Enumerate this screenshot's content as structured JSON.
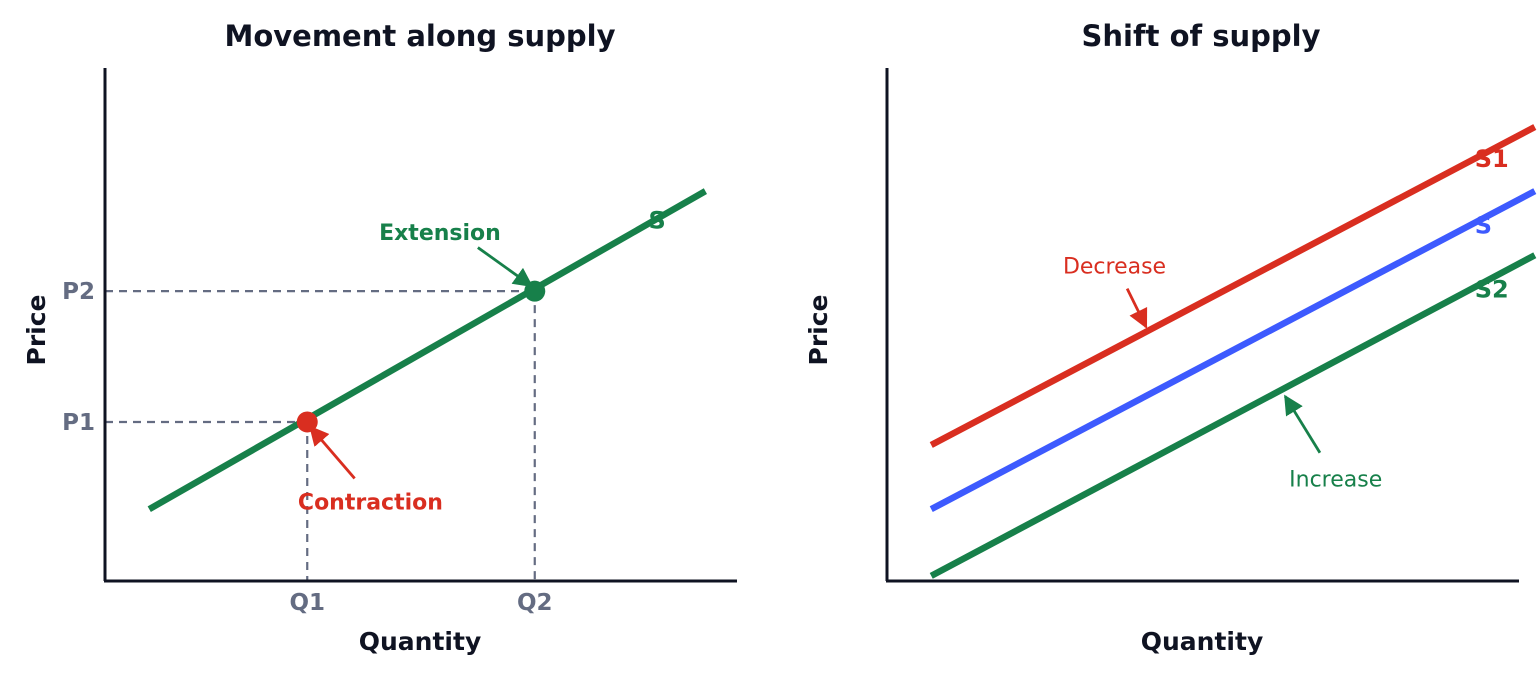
{
  "colors": {
    "supply": "#17804a",
    "s1": "#d92e20",
    "s": "#3d5afe",
    "s2": "#17804a",
    "contraction": "#d92e20",
    "extension": "#17804a",
    "guides": "#646c82",
    "axes": "#0f1322"
  },
  "chart_data": [
    {
      "type": "line",
      "title": "Movement along supply",
      "xlabel": "Quantity",
      "ylabel": "Price",
      "xlim": [
        0,
        10
      ],
      "ylim": [
        0,
        10
      ],
      "x_ticks": [
        {
          "value": 3.2,
          "label": "Q1"
        },
        {
          "value": 6.8,
          "label": "Q2"
        }
      ],
      "y_ticks": [
        {
          "value": 3.1,
          "label": "P1"
        },
        {
          "value": 5.65,
          "label": "P2"
        }
      ],
      "series": [
        {
          "name": "S",
          "color_key": "supply",
          "x": [
            0.7,
            9.5
          ],
          "y": [
            1.4,
            7.6
          ],
          "label_at": [
            8.6,
            7.05
          ]
        }
      ],
      "points": [
        {
          "x": 3.2,
          "y": 3.1,
          "color_key": "contraction"
        },
        {
          "x": 6.8,
          "y": 5.65,
          "color_key": "extension"
        }
      ],
      "annotations": [
        {
          "text": "Contraction",
          "color_key": "contraction",
          "text_at": [
            4.2,
            1.55
          ],
          "arrow_from": [
            3.95,
            2.0
          ],
          "arrow_to": [
            3.25,
            3.0
          ]
        },
        {
          "text": "Extension",
          "color_key": "extension",
          "text_at": [
            5.3,
            6.8
          ],
          "arrow_from": [
            5.9,
            6.5
          ],
          "arrow_to": [
            6.75,
            5.75
          ]
        }
      ]
    },
    {
      "type": "line",
      "title": "Shift of supply",
      "xlabel": "Quantity",
      "ylabel": "Price",
      "xlim": [
        0,
        10
      ],
      "ylim": [
        0,
        10
      ],
      "series": [
        {
          "name": "S1",
          "color_key": "s1",
          "x": [
            0.7,
            10.25
          ],
          "y": [
            2.65,
            8.85
          ],
          "label_at": [
            9.3,
            8.25
          ]
        },
        {
          "name": "S",
          "color_key": "s",
          "x": [
            0.7,
            10.25
          ],
          "y": [
            1.4,
            7.6
          ],
          "label_at": [
            9.3,
            6.95
          ]
        },
        {
          "name": "S2",
          "color_key": "s2",
          "x": [
            0.7,
            10.25
          ],
          "y": [
            0.1,
            6.35
          ],
          "label_at": [
            9.3,
            5.7
          ]
        }
      ],
      "annotations": [
        {
          "text": "Decrease",
          "color_key": "s1",
          "text_at": [
            3.6,
            6.15
          ],
          "arrow_from": [
            3.8,
            5.7
          ],
          "arrow_to": [
            4.1,
            4.95
          ]
        },
        {
          "text": "Increase",
          "color_key": "s2",
          "text_at": [
            7.1,
            2.0
          ],
          "arrow_from": [
            6.85,
            2.5
          ],
          "arrow_to": [
            6.3,
            3.6
          ]
        }
      ]
    }
  ]
}
